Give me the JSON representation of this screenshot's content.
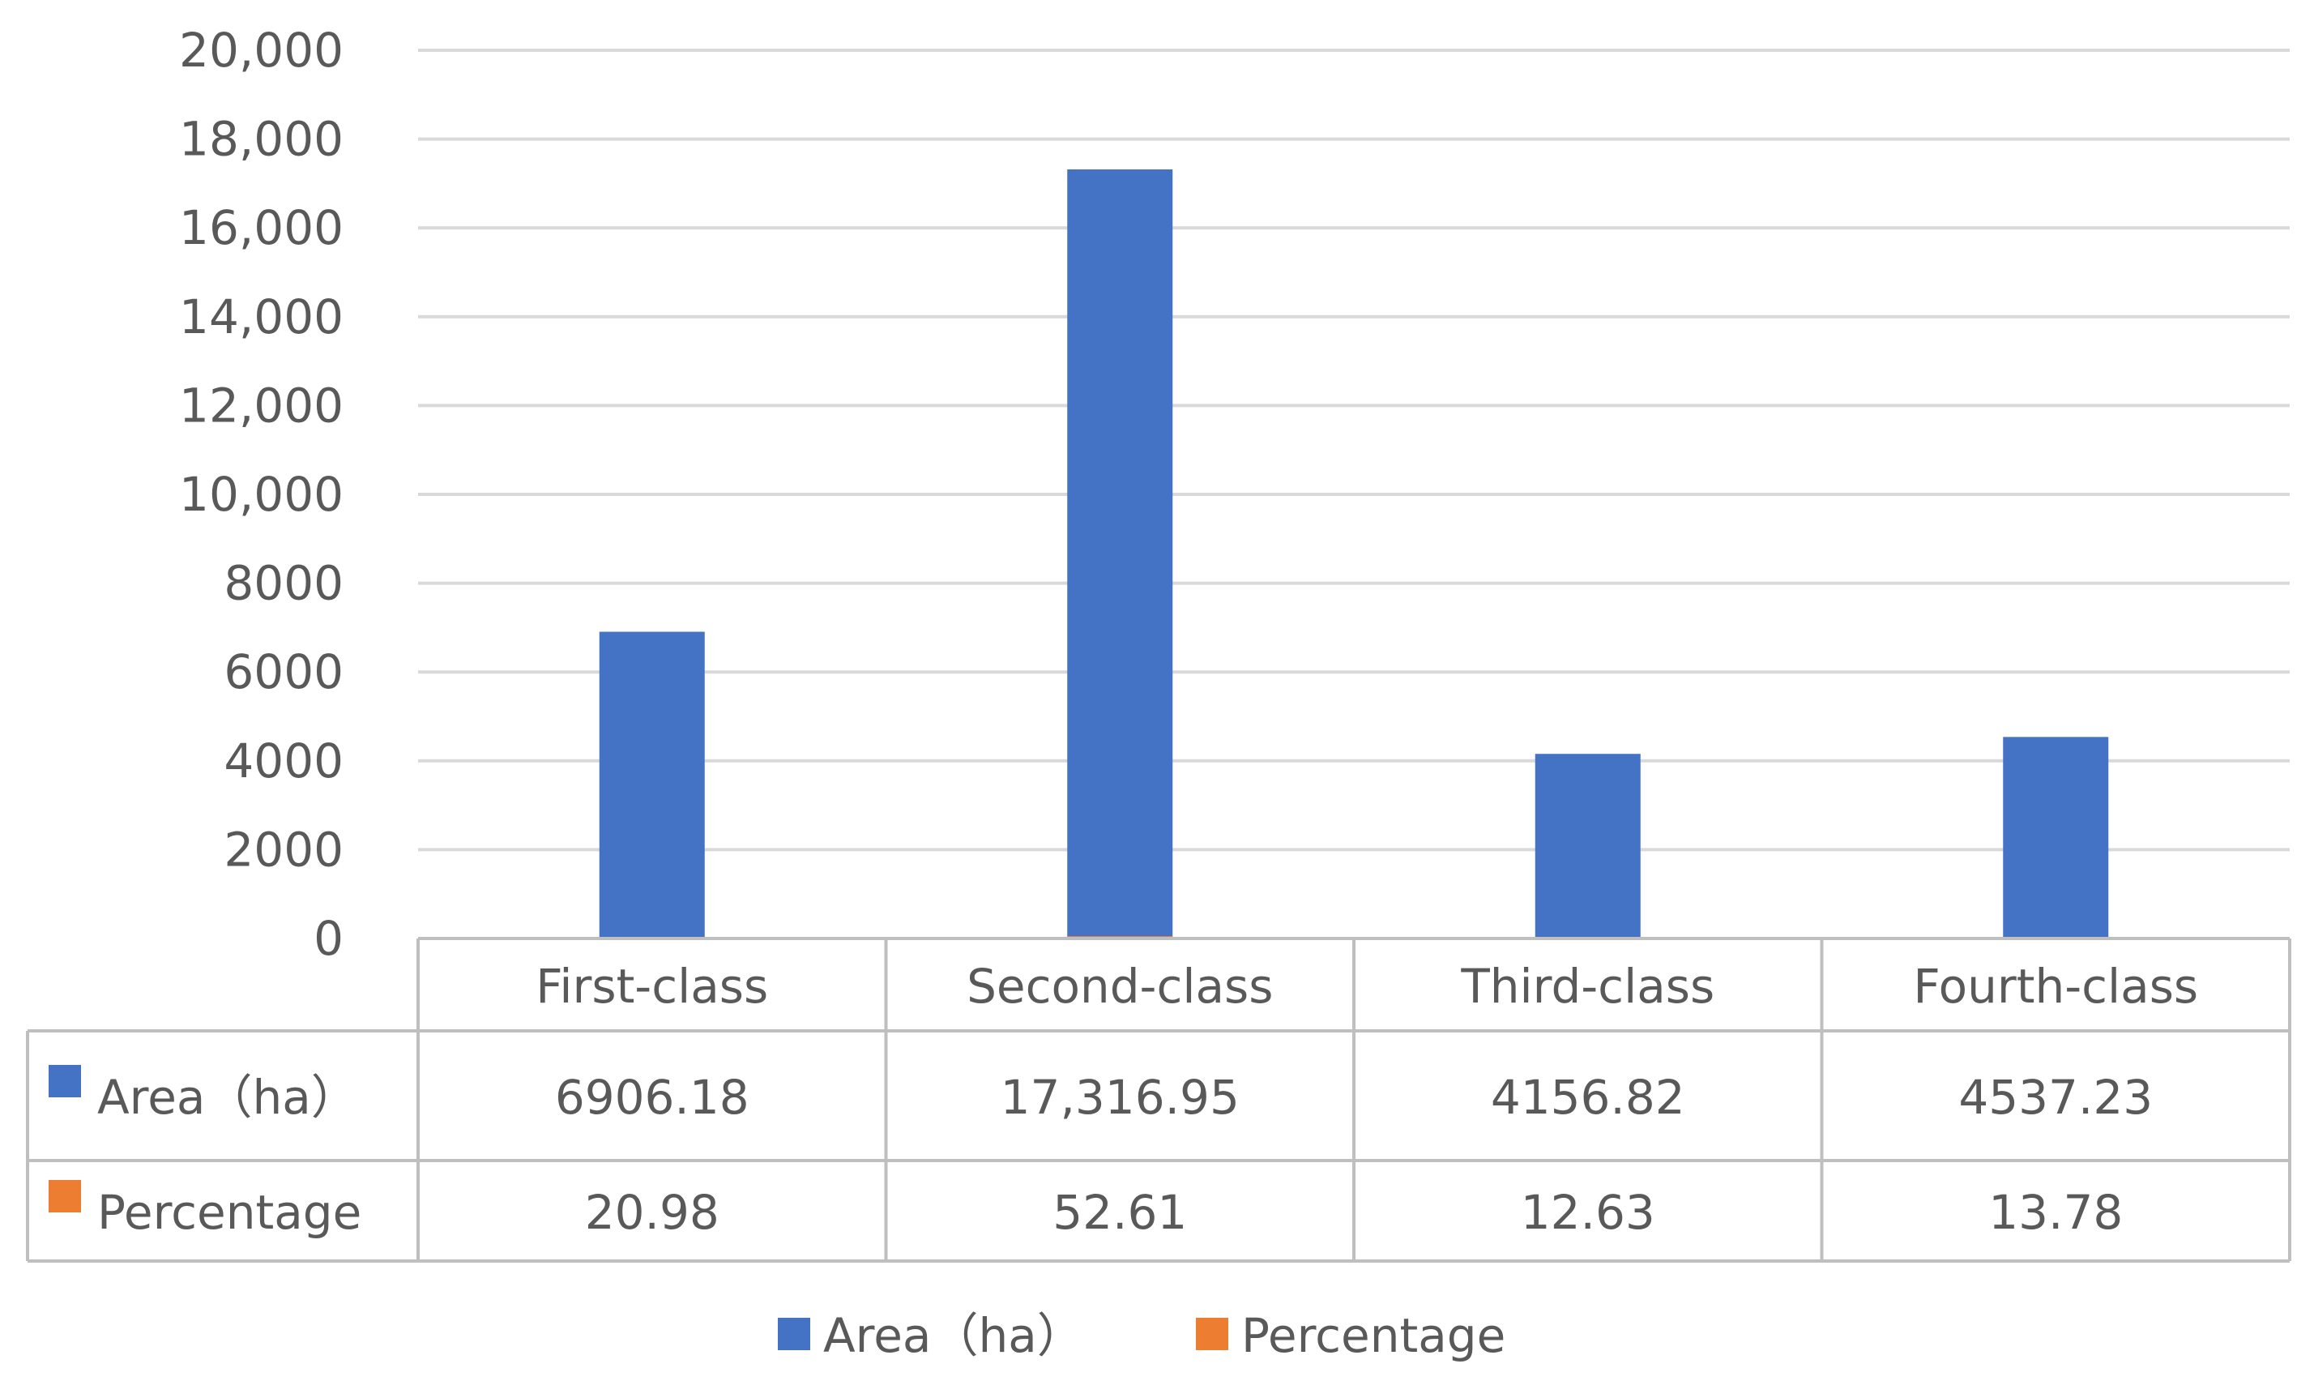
{
  "chart_data": {
    "type": "bar",
    "categories": [
      "First-class",
      "Second-class",
      "Third-class",
      "Fourth-class"
    ],
    "series": [
      {
        "name": "Area（ha）",
        "values": [
          6906.18,
          17316.95,
          4156.82,
          4537.23
        ],
        "value_labels": [
          "6906.18",
          "17,316.95",
          "4156.82",
          "4537.23"
        ],
        "color": "#4472C4",
        "plotted": true
      },
      {
        "name": "Percentage",
        "values": [
          20.98,
          52.61,
          12.63,
          13.78
        ],
        "value_labels": [
          "20.98",
          "52.61",
          "12.63",
          "13.78"
        ],
        "color": "#ED7D31",
        "plotted": true
      }
    ],
    "ylim": [
      0,
      20000
    ],
    "yticks": [
      0,
      2000,
      4000,
      6000,
      8000,
      10000,
      12000,
      14000,
      16000,
      18000,
      20000
    ],
    "ytick_labels": [
      "0",
      "2000",
      "4000",
      "6000",
      "8000",
      "10,000",
      "12,000",
      "14,000",
      "16,000",
      "18,000",
      "20,000"
    ],
    "grid": true,
    "data_table": true,
    "legend": "bottom-center",
    "gridline_color": "#D9D9D9",
    "text_color": "#595959",
    "table_border_color": "#BFBFBF"
  }
}
